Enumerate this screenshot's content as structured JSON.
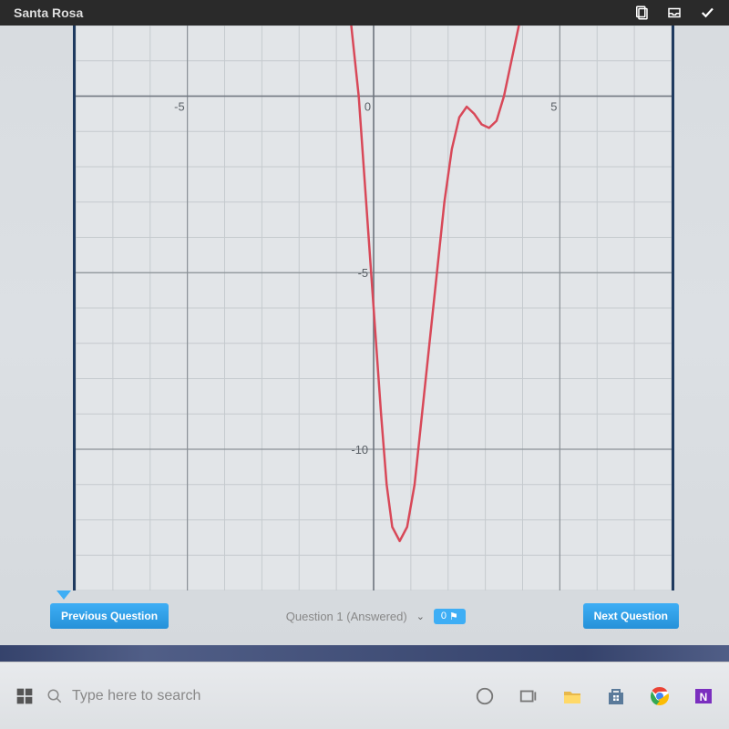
{
  "topbar": {
    "title": "Santa Rosa"
  },
  "chart": {
    "type": "line",
    "xlim": [
      -8,
      8
    ],
    "ylim": [
      -14,
      2
    ],
    "xtick_labels": [
      {
        "x": -5,
        "label": "-5"
      },
      {
        "x": 0,
        "label": "0"
      },
      {
        "x": 5,
        "label": "5"
      }
    ],
    "ytick_labels": [
      {
        "y": -5,
        "label": "-5"
      },
      {
        "y": -10,
        "label": "-10"
      }
    ],
    "grid_major_step": 5,
    "grid_minor_step": 1,
    "background_color": "#e2e5e8",
    "grid_minor_color": "#c5cace",
    "grid_major_color": "#8a9096",
    "axis_color": "#707680",
    "tick_label_color": "#5a6066",
    "tick_label_fontsize": 13,
    "curve_color": "#d84858",
    "curve_width": 2.5,
    "curve_points": [
      [
        -0.6,
        2
      ],
      [
        -0.4,
        0
      ],
      [
        -0.2,
        -3
      ],
      [
        0,
        -6
      ],
      [
        0.2,
        -9
      ],
      [
        0.35,
        -11
      ],
      [
        0.5,
        -12.2
      ],
      [
        0.7,
        -12.6
      ],
      [
        0.9,
        -12.2
      ],
      [
        1.1,
        -11
      ],
      [
        1.3,
        -9
      ],
      [
        1.5,
        -7
      ],
      [
        1.7,
        -5
      ],
      [
        1.9,
        -3
      ],
      [
        2.1,
        -1.5
      ],
      [
        2.3,
        -0.6
      ],
      [
        2.5,
        -0.3
      ],
      [
        2.7,
        -0.5
      ],
      [
        2.9,
        -0.8
      ],
      [
        3.1,
        -0.9
      ],
      [
        3.3,
        -0.7
      ],
      [
        3.5,
        0
      ],
      [
        3.7,
        1
      ],
      [
        3.9,
        2
      ]
    ]
  },
  "nav": {
    "previous_label": "Previous Question",
    "status_text": "Question 1 (Answered)",
    "flag_count": "0",
    "next_label": "Next Question"
  },
  "taskbar": {
    "search_placeholder": "Type here to search"
  }
}
